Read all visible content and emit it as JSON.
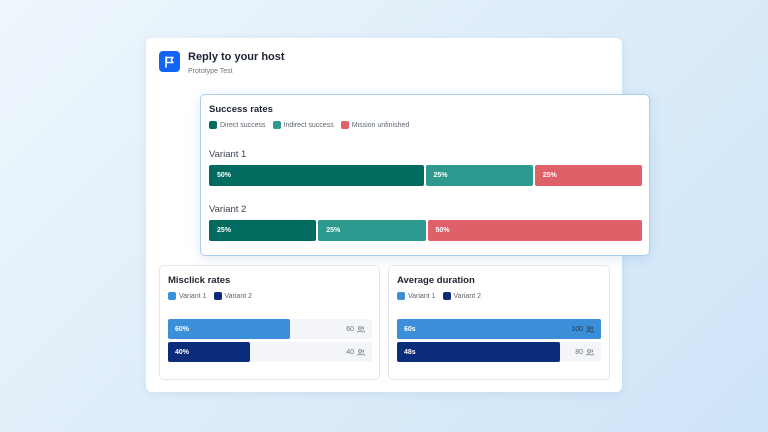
{
  "card": {
    "title": "Reply to your host",
    "subtitle": "Prototype Test",
    "badge_icon": "flag-icon",
    "badge_color": "#1265f3"
  },
  "success_rates": {
    "title": "Success rates",
    "legend": [
      {
        "label": "Direct success",
        "color": "#006b5e"
      },
      {
        "label": "Indirect success",
        "color": "#2e9a8f"
      },
      {
        "label": "Mission unfinished",
        "color": "#e0606a"
      }
    ],
    "variants": [
      {
        "label": "Variant 1",
        "segments": [
          {
            "value": 50,
            "text": "50%"
          },
          {
            "value": 25,
            "text": "25%"
          },
          {
            "value": 25,
            "text": "25%"
          }
        ]
      },
      {
        "label": "Variant 2",
        "segments": [
          {
            "value": 25,
            "text": "25%"
          },
          {
            "value": 25,
            "text": "25%"
          },
          {
            "value": 50,
            "text": "50%"
          }
        ]
      }
    ]
  },
  "misclick_rates": {
    "title": "Misclick rates",
    "legend": [
      {
        "label": "Variant 1",
        "color": "#3b8fd8"
      },
      {
        "label": "Variant 2",
        "color": "#0b2c7a"
      }
    ],
    "bars": [
      {
        "text": "60%",
        "fraction": 0.6,
        "count": "60"
      },
      {
        "text": "40%",
        "fraction": 0.4,
        "count": "40"
      }
    ],
    "count_icon": "users-icon"
  },
  "average_duration": {
    "title": "Average duration",
    "legend": [
      {
        "label": "Variant 1",
        "color": "#3b8fd8"
      },
      {
        "label": "Variant 2",
        "color": "#0b2c7a"
      }
    ],
    "bars": [
      {
        "text": "60s",
        "fraction": 1.0,
        "count": "100"
      },
      {
        "text": "48s",
        "fraction": 0.8,
        "count": "80"
      }
    ],
    "count_icon": "users-icon"
  }
}
